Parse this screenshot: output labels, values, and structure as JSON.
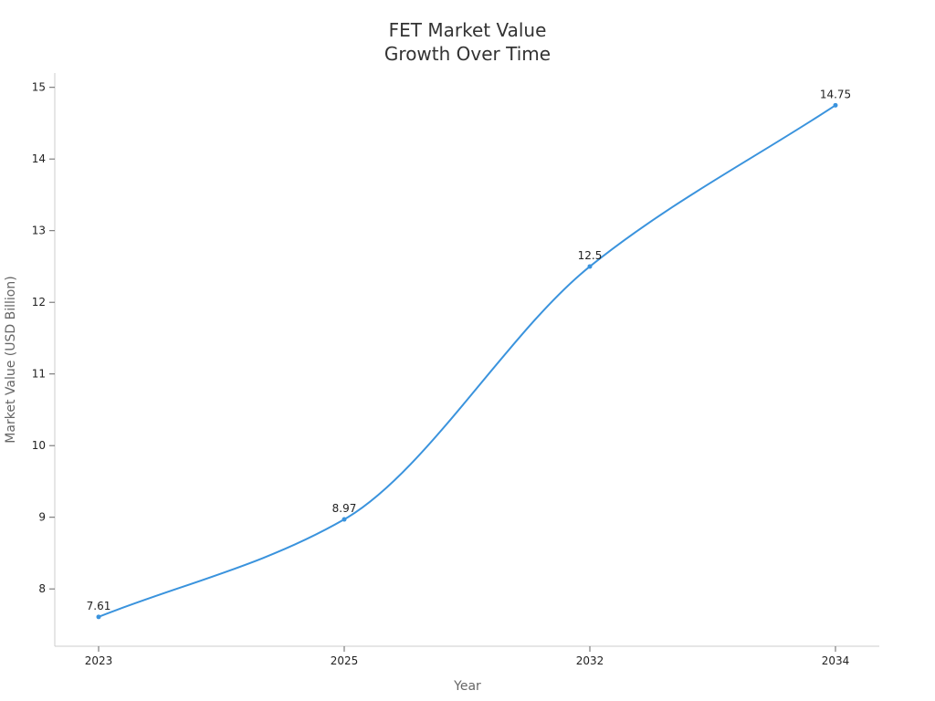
{
  "chart_data": {
    "type": "line",
    "title_lines": [
      "FET Market Value",
      "Growth Over Time"
    ],
    "xlabel": "Year",
    "ylabel": "Market Value (USD Billion)",
    "categories": [
      "2023",
      "2025",
      "2032",
      "2034"
    ],
    "series": [
      {
        "values": [
          7.61,
          8.97,
          12.5,
          14.75
        ],
        "data_labels": [
          "7.61",
          "8.97",
          "12.5",
          "14.75"
        ],
        "color": "#3a93dd"
      }
    ],
    "ylim": [
      7.2,
      15.2
    ],
    "yticks": [
      8,
      9,
      10,
      11,
      12,
      13,
      14,
      15
    ],
    "ytick_labels": [
      "8",
      "9",
      "10",
      "11",
      "12",
      "13",
      "14",
      "15"
    ],
    "grid": false,
    "legend": "none"
  }
}
